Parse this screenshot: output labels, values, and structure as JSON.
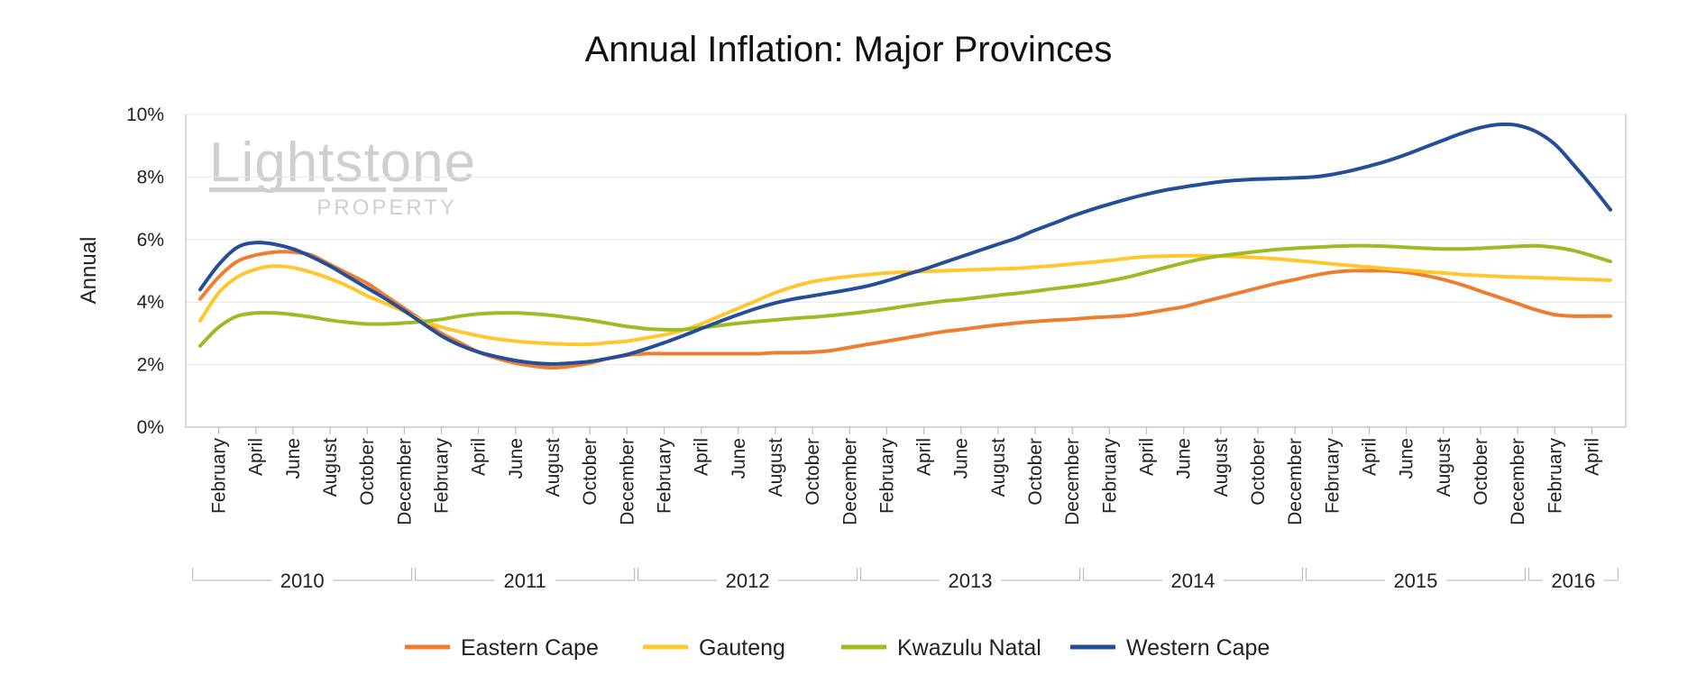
{
  "chart_data": {
    "type": "line",
    "title": "Annual Inflation: Major Provinces",
    "ylabel": "Annual",
    "xlabel": "",
    "ylim": [
      0,
      10
    ],
    "yticks": [
      "0%",
      "2%",
      "4%",
      "6%",
      "8%",
      "10%"
    ],
    "ytick_values": [
      0,
      2,
      4,
      6,
      8,
      10
    ],
    "grid": true,
    "legend_position": "bottom",
    "watermark": {
      "line1": "Lightstone",
      "line2": "PROPERTY"
    },
    "x": [
      "Jan 2010",
      "Feb 2010",
      "Mar 2010",
      "Apr 2010",
      "May 2010",
      "Jun 2010",
      "Jul 2010",
      "Aug 2010",
      "Sep 2010",
      "Oct 2010",
      "Nov 2010",
      "Dec 2010",
      "Jan 2011",
      "Feb 2011",
      "Mar 2011",
      "Apr 2011",
      "May 2011",
      "Jun 2011",
      "Jul 2011",
      "Aug 2011",
      "Sep 2011",
      "Oct 2011",
      "Nov 2011",
      "Dec 2011",
      "Jan 2012",
      "Feb 2012",
      "Mar 2012",
      "Apr 2012",
      "May 2012",
      "Jun 2012",
      "Jul 2012",
      "Aug 2012",
      "Sep 2012",
      "Oct 2012",
      "Nov 2012",
      "Dec 2012",
      "Jan 2013",
      "Feb 2013",
      "Mar 2013",
      "Apr 2013",
      "May 2013",
      "Jun 2013",
      "Jul 2013",
      "Aug 2013",
      "Sep 2013",
      "Oct 2013",
      "Nov 2013",
      "Dec 2013",
      "Jan 2014",
      "Feb 2014",
      "Mar 2014",
      "Apr 2014",
      "May 2014",
      "Jun 2014",
      "Jul 2014",
      "Aug 2014",
      "Sep 2014",
      "Oct 2014",
      "Nov 2014",
      "Dec 2014",
      "Jan 2015",
      "Feb 2015",
      "Mar 2015",
      "Apr 2015",
      "May 2015",
      "Jun 2015",
      "Jul 2015",
      "Aug 2015",
      "Sep 2015",
      "Oct 2015",
      "Nov 2015",
      "Dec 2015",
      "Jan 2016",
      "Feb 2016",
      "Mar 2016",
      "Apr 2016",
      "May 2016"
    ],
    "tick_labels": [
      "February",
      "April",
      "June",
      "August",
      "October",
      "December",
      "February",
      "April",
      "June",
      "August",
      "October",
      "December",
      "February",
      "April",
      "June",
      "August",
      "October",
      "December",
      "February",
      "April",
      "June",
      "August",
      "October",
      "December",
      "February",
      "April",
      "June",
      "August",
      "October",
      "December",
      "February",
      "April",
      "June",
      "August",
      "October",
      "December",
      "February",
      "April"
    ],
    "tick_indices": [
      1,
      3,
      5,
      7,
      9,
      11,
      13,
      15,
      17,
      19,
      21,
      23,
      25,
      27,
      29,
      31,
      33,
      35,
      37,
      39,
      41,
      43,
      45,
      47,
      49,
      51,
      53,
      55,
      57,
      59,
      61,
      63,
      65,
      67,
      69,
      71,
      73,
      75
    ],
    "year_groups": [
      {
        "label": "2010",
        "start": 0,
        "end": 11
      },
      {
        "label": "2011",
        "start": 12,
        "end": 23
      },
      {
        "label": "2012",
        "start": 24,
        "end": 35
      },
      {
        "label": "2013",
        "start": 36,
        "end": 47
      },
      {
        "label": "2014",
        "start": 48,
        "end": 59
      },
      {
        "label": "2015",
        "start": 60,
        "end": 71
      },
      {
        "label": "2016",
        "start": 72,
        "end": 76
      }
    ],
    "series": [
      {
        "name": "Eastern Cape",
        "color": "#ED7D31",
        "values": [
          4.1,
          4.8,
          5.3,
          5.5,
          5.6,
          5.6,
          5.5,
          5.2,
          4.9,
          4.6,
          4.2,
          3.8,
          3.4,
          3.0,
          2.7,
          2.4,
          2.2,
          2.05,
          1.95,
          1.9,
          1.95,
          2.05,
          2.2,
          2.3,
          2.35,
          2.35,
          2.35,
          2.35,
          2.35,
          2.35,
          2.35,
          2.38,
          2.38,
          2.4,
          2.45,
          2.55,
          2.65,
          2.75,
          2.85,
          2.95,
          3.05,
          3.12,
          3.2,
          3.27,
          3.33,
          3.38,
          3.42,
          3.45,
          3.5,
          3.53,
          3.57,
          3.65,
          3.75,
          3.85,
          4.0,
          4.15,
          4.3,
          4.45,
          4.6,
          4.72,
          4.85,
          4.95,
          5.0,
          5.0,
          5.0,
          4.95,
          4.85,
          4.72,
          4.55,
          4.35,
          4.15,
          3.95,
          3.75,
          3.6,
          3.55,
          3.55,
          3.55
        ]
      },
      {
        "name": "Gauteng",
        "color": "#FFC62D",
        "values": [
          3.4,
          4.3,
          4.8,
          5.05,
          5.15,
          5.1,
          4.95,
          4.75,
          4.5,
          4.2,
          3.95,
          3.7,
          3.4,
          3.2,
          3.05,
          2.92,
          2.82,
          2.75,
          2.7,
          2.67,
          2.65,
          2.65,
          2.7,
          2.75,
          2.85,
          2.95,
          3.1,
          3.3,
          3.55,
          3.8,
          4.05,
          4.3,
          4.5,
          4.65,
          4.75,
          4.82,
          4.88,
          4.93,
          4.96,
          4.98,
          5.0,
          5.02,
          5.04,
          5.06,
          5.08,
          5.12,
          5.16,
          5.22,
          5.27,
          5.33,
          5.4,
          5.45,
          5.47,
          5.48,
          5.48,
          5.47,
          5.45,
          5.42,
          5.38,
          5.33,
          5.28,
          5.22,
          5.17,
          5.12,
          5.07,
          5.02,
          4.97,
          4.93,
          4.88,
          4.85,
          4.82,
          4.8,
          4.78,
          4.76,
          4.74,
          4.72,
          4.7
        ]
      },
      {
        "name": "Kwazulu Natal",
        "color": "#9CBB25",
        "values": [
          2.6,
          3.2,
          3.55,
          3.65,
          3.65,
          3.6,
          3.52,
          3.42,
          3.35,
          3.3,
          3.3,
          3.33,
          3.38,
          3.45,
          3.55,
          3.62,
          3.65,
          3.65,
          3.62,
          3.57,
          3.5,
          3.42,
          3.32,
          3.22,
          3.15,
          3.12,
          3.12,
          3.18,
          3.25,
          3.32,
          3.38,
          3.43,
          3.48,
          3.52,
          3.57,
          3.63,
          3.7,
          3.78,
          3.87,
          3.95,
          4.03,
          4.08,
          4.15,
          4.22,
          4.28,
          4.35,
          4.43,
          4.5,
          4.58,
          4.68,
          4.8,
          4.95,
          5.1,
          5.25,
          5.38,
          5.48,
          5.55,
          5.62,
          5.68,
          5.72,
          5.75,
          5.78,
          5.8,
          5.8,
          5.78,
          5.75,
          5.72,
          5.7,
          5.7,
          5.72,
          5.75,
          5.78,
          5.8,
          5.75,
          5.65,
          5.48,
          5.3
        ]
      },
      {
        "name": "Western Cape",
        "color": "#244E97",
        "values": [
          4.4,
          5.2,
          5.75,
          5.9,
          5.85,
          5.7,
          5.45,
          5.15,
          4.8,
          4.45,
          4.1,
          3.72,
          3.32,
          2.92,
          2.62,
          2.4,
          2.25,
          2.13,
          2.05,
          2.02,
          2.05,
          2.1,
          2.2,
          2.32,
          2.5,
          2.7,
          2.92,
          3.15,
          3.38,
          3.6,
          3.8,
          3.97,
          4.1,
          4.2,
          4.3,
          4.4,
          4.52,
          4.68,
          4.87,
          5.05,
          5.25,
          5.45,
          5.65,
          5.85,
          6.05,
          6.3,
          6.52,
          6.75,
          6.95,
          7.13,
          7.3,
          7.45,
          7.58,
          7.68,
          7.77,
          7.85,
          7.9,
          7.93,
          7.95,
          7.97,
          8.0,
          8.08,
          8.2,
          8.35,
          8.52,
          8.72,
          8.95,
          9.18,
          9.4,
          9.58,
          9.68,
          9.65,
          9.45,
          9.05,
          8.4,
          7.7,
          6.95
        ]
      }
    ]
  }
}
